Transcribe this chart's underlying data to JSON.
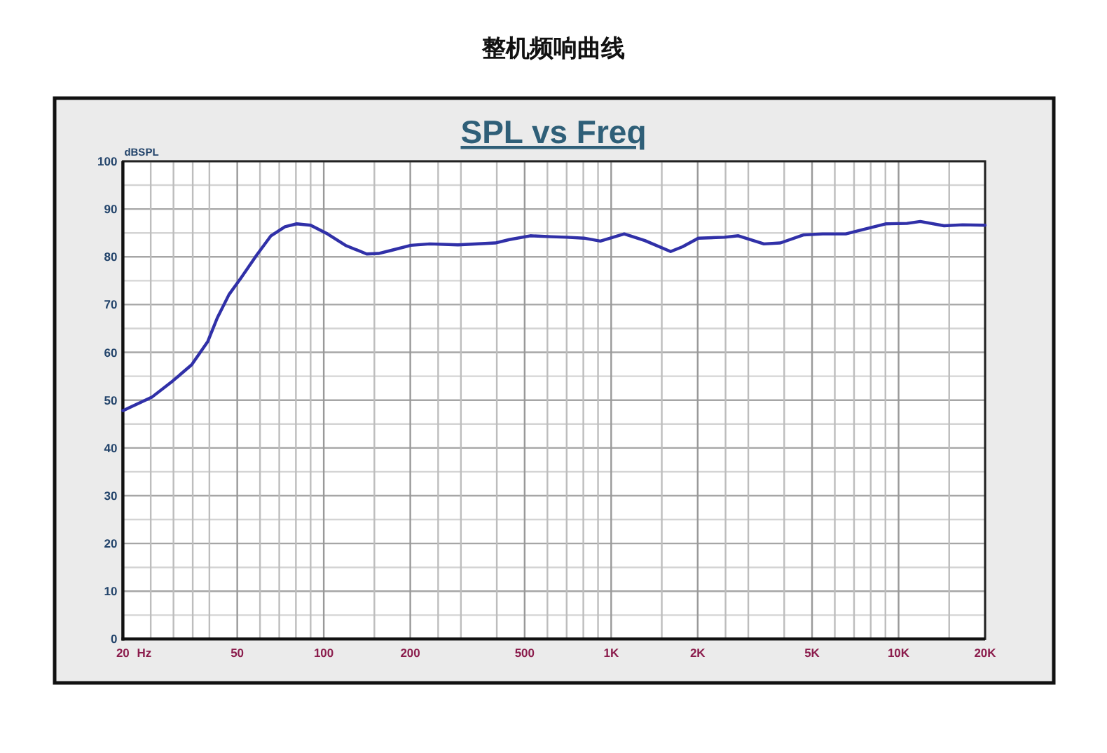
{
  "chart_data": {
    "type": "line",
    "title": "整机频响曲线",
    "subtitle": "SPL vs Freq",
    "ylabel": "dBSPL",
    "xlabel": "Hz",
    "log": "x",
    "grid": true,
    "xlim": [
      20,
      20000
    ],
    "ylim": [
      0,
      100
    ],
    "xticks": [
      {
        "value": 20,
        "label": "20"
      },
      {
        "value": 25,
        "label": null
      },
      {
        "value": 30,
        "label": null
      },
      {
        "value": 35,
        "label": null
      },
      {
        "value": 40,
        "label": null
      },
      50,
      {
        "value": 60,
        "label": null
      },
      {
        "value": 70,
        "label": null
      },
      {
        "value": 80,
        "label": null
      },
      {
        "value": 90,
        "label": null
      },
      100,
      {
        "value": 150,
        "label": null
      },
      200,
      {
        "value": 250,
        "label": null
      },
      {
        "value": 300,
        "label": null
      },
      {
        "value": 400,
        "label": null
      },
      500,
      {
        "value": 600,
        "label": null
      },
      {
        "value": 700,
        "label": null
      },
      {
        "value": 800,
        "label": null
      },
      {
        "value": 900,
        "label": null
      },
      {
        "value": 1000,
        "label": "1K"
      },
      {
        "value": 1500,
        "label": null
      },
      {
        "value": 2000,
        "label": "2K"
      },
      {
        "value": 2500,
        "label": null
      },
      {
        "value": 3000,
        "label": null
      },
      {
        "value": 4000,
        "label": null
      },
      {
        "value": 5000,
        "label": "5K"
      },
      {
        "value": 6000,
        "label": null
      },
      {
        "value": 7000,
        "label": null
      },
      {
        "value": 8000,
        "label": null
      },
      {
        "value": 9000,
        "label": null
      },
      {
        "value": 10000,
        "label": "10K"
      },
      {
        "value": 15000,
        "label": null
      },
      {
        "value": 20000,
        "label": "20K"
      }
    ],
    "yticks": [
      0,
      {
        "value": 5,
        "label": null
      },
      10,
      {
        "value": 15,
        "label": null
      },
      20,
      {
        "value": 25,
        "label": null
      },
      30,
      {
        "value": 35,
        "label": null
      },
      40,
      {
        "value": 45,
        "label": null
      },
      50,
      {
        "value": 55,
        "label": null
      },
      60,
      {
        "value": 65,
        "label": null
      },
      70,
      {
        "value": 75,
        "label": null
      },
      80,
      {
        "value": 85,
        "label": null
      },
      90,
      {
        "value": 95,
        "label": null
      },
      100
    ],
    "x": [
      20,
      25.2,
      29.8,
      34.7,
      39.5,
      42.6,
      46.8,
      51.4,
      58.5,
      65.5,
      73.3,
      80.5,
      90,
      103,
      119,
      141,
      155,
      173,
      201,
      234,
      293,
      395,
      442,
      523,
      619,
      700,
      805,
      917,
      1110,
      1310,
      1610,
      1770,
      2010,
      2480,
      2770,
      3400,
      3880,
      4680,
      5440,
      6550,
      7610,
      9010,
      10700,
      11900,
      14400,
      16700,
      20000
    ],
    "series": [
      {
        "color": "#3030a8",
        "values": [
          47.8,
          50.6,
          54.0,
          57.4,
          62.3,
          67.2,
          72.1,
          75.5,
          80.4,
          84.4,
          86.3,
          86.9,
          86.6,
          84.8,
          82.4,
          80.6,
          80.7,
          81.4,
          82.4,
          82.7,
          82.5,
          82.9,
          83.6,
          84.4,
          84.2,
          84.1,
          83.9,
          83.3,
          84.8,
          83.4,
          81.1,
          82.1,
          83.9,
          84.1,
          84.4,
          82.7,
          82.9,
          84.6,
          84.8,
          84.8,
          85.8,
          86.9,
          87.0,
          87.4,
          86.5,
          86.7,
          86.6
        ]
      }
    ]
  }
}
